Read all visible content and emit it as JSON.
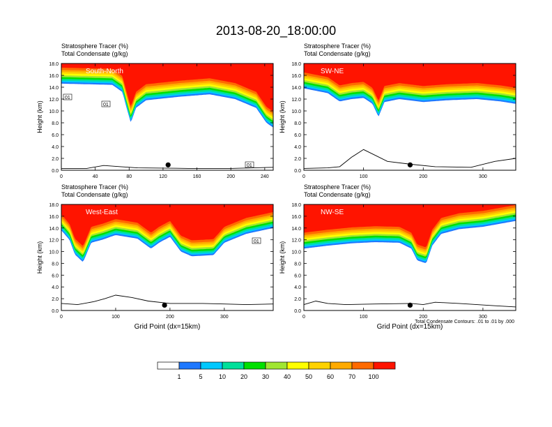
{
  "figure": {
    "title": "2013-08-20_18:00:00",
    "footnote": "Total Condensate Contours: .01 to .01 by .000"
  },
  "colors": [
    "#ffffff",
    "#1e78ff",
    "#00c8ff",
    "#00e09a",
    "#00e000",
    "#a0e632",
    "#ffff00",
    "#ffd200",
    "#ffaa00",
    "#ff6a00",
    "#ff1400"
  ],
  "colorbar": {
    "labels": [
      "1",
      "5",
      "10",
      "20",
      "30",
      "40",
      "50",
      "60",
      "70",
      "100"
    ]
  },
  "chart_data": [
    {
      "type": "heatmap",
      "panel_label": "South-North",
      "title_line1": "Stratosphere Tracer   (%)",
      "title_line2": "Total Condensate   (g/kg)",
      "ylabel": "Height (km)",
      "xlabel": "",
      "xlim": [
        0,
        250
      ],
      "ylim": [
        0,
        18
      ],
      "xticks": [
        "0",
        "40",
        "80",
        "120",
        "160",
        "200",
        "240"
      ],
      "yticks": [
        "0.0",
        "2.0",
        "4.0",
        "6.0",
        "8.0",
        "10.0",
        "12.0",
        "14.0",
        "16.0",
        "18.0"
      ],
      "contour_labels": [
        "01",
        "01",
        "01"
      ],
      "marker_x": 126,
      "tropopause": [
        [
          0,
          14.6
        ],
        [
          60,
          14.4
        ],
        [
          72,
          13.2
        ],
        [
          78,
          10.0
        ],
        [
          82,
          8.0
        ],
        [
          88,
          10.5
        ],
        [
          100,
          11.8
        ],
        [
          140,
          12.4
        ],
        [
          175,
          12.8
        ],
        [
          205,
          12.0
        ],
        [
          230,
          10.5
        ],
        [
          242,
          8.0
        ],
        [
          250,
          7.2
        ]
      ]
    },
    {
      "type": "heatmap",
      "panel_label": "SW-NE",
      "title_line1": "Stratosphere Tracer   (%)",
      "title_line2": "Total Condensate   (g/kg)",
      "ylabel": "Height (km)",
      "xlabel": "",
      "xlim": [
        0,
        355
      ],
      "ylim": [
        0,
        18
      ],
      "xticks": [
        "0",
        "100",
        "200",
        "300"
      ],
      "yticks": [
        "0.0",
        "2.0",
        "4.0",
        "6.0",
        "8.0",
        "10.0",
        "12.0",
        "14.0",
        "16.0",
        "18.0"
      ],
      "contour_labels": [],
      "marker_x": 178,
      "tropopause": [
        [
          0,
          13.8
        ],
        [
          40,
          13.0
        ],
        [
          60,
          11.6
        ],
        [
          80,
          12.0
        ],
        [
          100,
          12.2
        ],
        [
          115,
          11.2
        ],
        [
          125,
          9.0
        ],
        [
          135,
          11.5
        ],
        [
          160,
          12.0
        ],
        [
          200,
          11.5
        ],
        [
          240,
          11.8
        ],
        [
          290,
          12.0
        ],
        [
          330,
          11.6
        ],
        [
          355,
          11.2
        ]
      ]
    },
    {
      "type": "heatmap",
      "panel_label": "West-East",
      "title_line1": "Stratosphere Tracer   (%)",
      "title_line2": "Total Condensate   (g/kg)",
      "ylabel": "Height (km)",
      "xlabel": "Grid Point (dx=15km)",
      "xlim": [
        0,
        390
      ],
      "ylim": [
        0,
        18
      ],
      "xticks": [
        "0",
        "100",
        "200",
        "300"
      ],
      "yticks": [
        "0.0",
        "2.0",
        "4.0",
        "6.0",
        "8.0",
        "10.0",
        "12.0",
        "14.0",
        "16.0",
        "18.0"
      ],
      "contour_labels": [
        "01"
      ],
      "marker_x": 190,
      "tropopause": [
        [
          0,
          13.6
        ],
        [
          15,
          12.0
        ],
        [
          25,
          9.5
        ],
        [
          40,
          8.2
        ],
        [
          55,
          11.5
        ],
        [
          75,
          12.0
        ],
        [
          100,
          12.8
        ],
        [
          140,
          12.2
        ],
        [
          165,
          10.5
        ],
        [
          180,
          11.5
        ],
        [
          200,
          12.5
        ],
        [
          220,
          10.0
        ],
        [
          240,
          9.2
        ],
        [
          280,
          9.4
        ],
        [
          300,
          11.5
        ],
        [
          340,
          13.0
        ],
        [
          390,
          14.0
        ]
      ]
    },
    {
      "type": "heatmap",
      "panel_label": "NW-SE",
      "title_line1": "Stratosphere Tracer   (%)",
      "title_line2": "Total Condensate   (g/kg)",
      "ylabel": "Height (km)",
      "xlabel": "Grid Point (dx=15km)",
      "xlim": [
        0,
        355
      ],
      "ylim": [
        0,
        18
      ],
      "xticks": [
        "0",
        "100",
        "200",
        "300"
      ],
      "yticks": [
        "0.0",
        "2.0",
        "4.0",
        "6.0",
        "8.0",
        "10.0",
        "12.0",
        "14.0",
        "16.0",
        "18.0"
      ],
      "contour_labels": [],
      "marker_x": 178,
      "tropopause": [
        [
          0,
          10.5
        ],
        [
          40,
          11.0
        ],
        [
          80,
          11.4
        ],
        [
          120,
          11.6
        ],
        [
          160,
          11.5
        ],
        [
          180,
          10.5
        ],
        [
          190,
          8.5
        ],
        [
          205,
          8.0
        ],
        [
          215,
          11.0
        ],
        [
          230,
          13.0
        ],
        [
          260,
          13.8
        ],
        [
          300,
          14.2
        ],
        [
          355,
          15.2
        ]
      ]
    }
  ]
}
